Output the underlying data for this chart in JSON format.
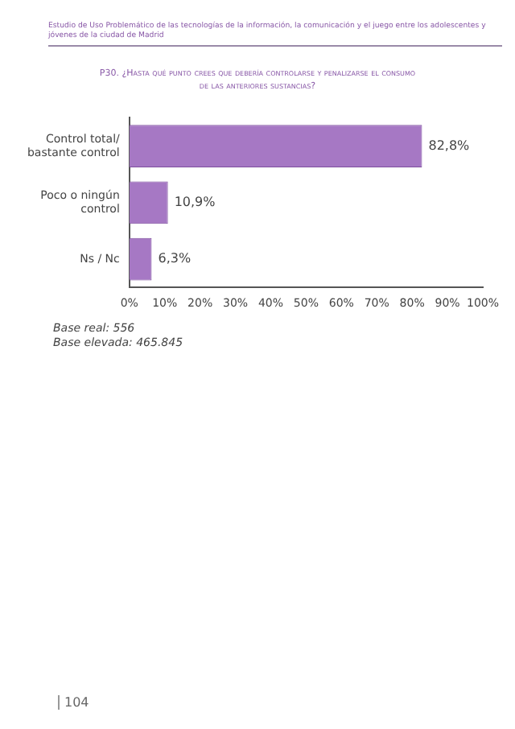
{
  "chart_data": {
    "type": "bar",
    "orientation": "horizontal",
    "title": "P30. ¿Hasta qué punto crees que debería controlarse y penalizarse el consumo de las anteriores sustancias?",
    "categories": [
      "Control total/ bastante control",
      "Poco o ningún control",
      "Ns / Nc"
    ],
    "values": [
      82.8,
      10.9,
      6.3
    ],
    "value_labels": [
      "82,8%",
      "10,9%",
      "6,3%"
    ],
    "color": "#a678c4",
    "xlim": [
      0,
      100
    ],
    "xticks": [
      {
        "value": 0,
        "label": "0%"
      },
      {
        "value": 10,
        "label": "10%"
      },
      {
        "value": 20,
        "label": "20%"
      },
      {
        "value": 30,
        "label": "30%"
      },
      {
        "value": 40,
        "label": "40%"
      },
      {
        "value": 50,
        "label": "50%"
      },
      {
        "value": 60,
        "label": "60%"
      },
      {
        "value": 70,
        "label": "70%"
      },
      {
        "value": 80,
        "label": "80%"
      },
      {
        "value": 90,
        "label": "90%"
      },
      {
        "value": 100,
        "label": "100%"
      }
    ],
    "grid": false,
    "legend": false,
    "annotations": [
      "Estudio de Uso Problemático de las tecnologías de la información, la comunicación y el juego entre los adolescentes y jóvenes de la ciudad de Madrid",
      "Base real: 556",
      "Base elevada: 465.845",
      "104"
    ]
  }
}
